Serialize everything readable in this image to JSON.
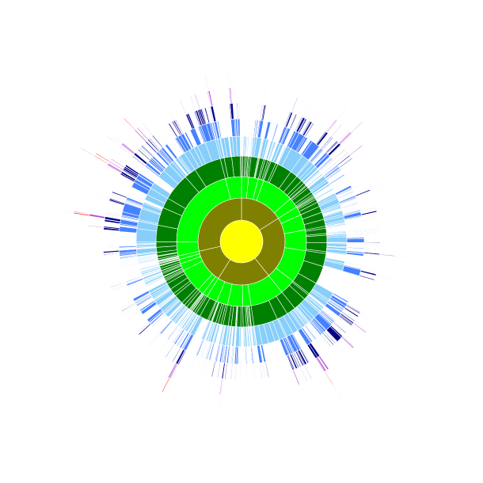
{
  "diagram": {
    "type": "sunburst",
    "depth_colors": [
      "#ffff00",
      "#808000",
      "#00ff00",
      "#008000",
      "#87cefa",
      "#4682ff",
      "#00008b",
      "#ba55d3",
      "#ff0000",
      "#8b0000"
    ],
    "center_color": "#ffff00",
    "rings": 10,
    "seed": 7
  }
}
